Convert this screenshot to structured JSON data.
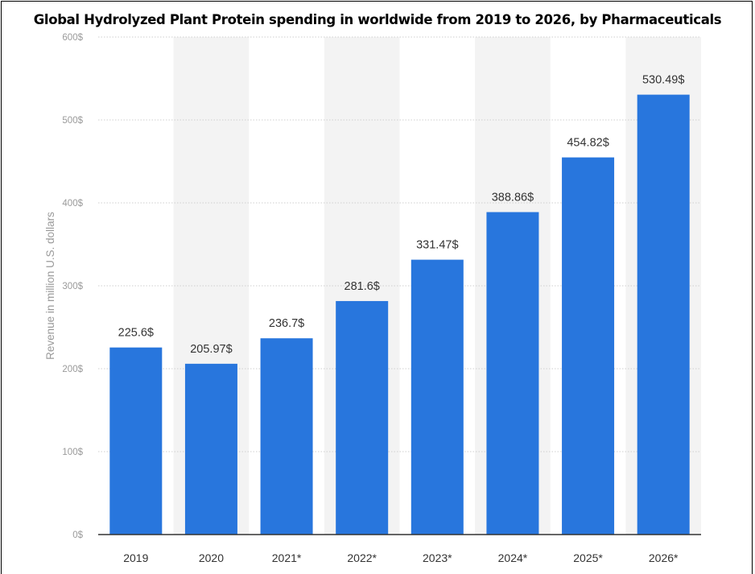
{
  "chart_data": {
    "type": "bar",
    "title": "Global Hydrolyzed Plant Protein spending in worldwide from 2019 to 2026, by Pharmaceuticals",
    "xlabel": "",
    "ylabel": "Revenue in million U.S. dollars",
    "categories": [
      "2019",
      "2020",
      "2021*",
      "2022*",
      "2023*",
      "2024*",
      "2025*",
      "2026*"
    ],
    "values": [
      225.6,
      205.97,
      236.7,
      281.6,
      331.47,
      388.86,
      454.82,
      530.49
    ],
    "value_labels": [
      "225.6$",
      "205.97$",
      "236.7$",
      "281.6$",
      "331.47$",
      "388.86$",
      "454.82$",
      "530.49$"
    ],
    "ylim": [
      0,
      600
    ],
    "yticks": [
      0,
      100,
      200,
      300,
      400,
      500,
      600
    ],
    "ytick_labels": [
      "0$",
      "100$",
      "200$",
      "300$",
      "400$",
      "500$",
      "600$"
    ],
    "grid": true,
    "legend": "none",
    "colors": {
      "bar": "#2876dd",
      "band": "#f3f3f3",
      "grid": "#cfcfcf",
      "axis": "#333333",
      "tick_text": "#9a9a9a",
      "label_text": "#333333",
      "category_text": "#333333"
    }
  }
}
